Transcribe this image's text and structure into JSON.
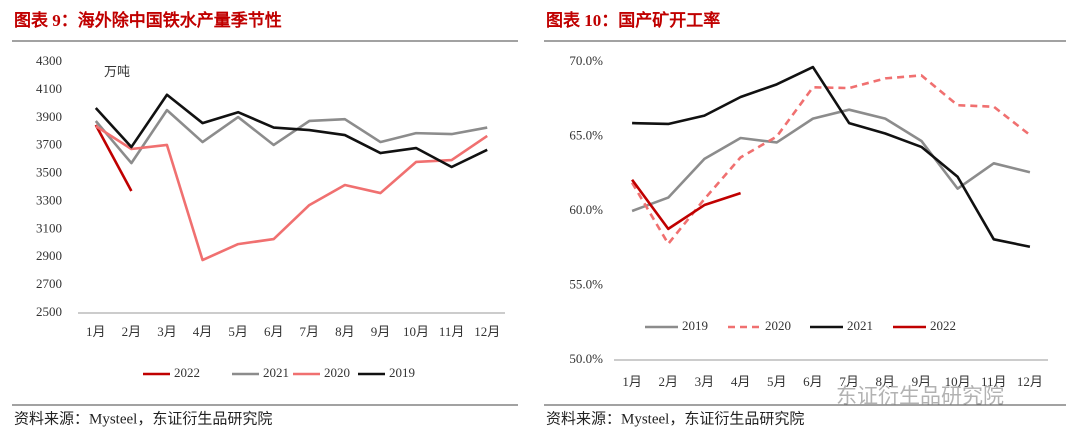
{
  "chart_data": [
    {
      "type": "line",
      "title": "图表 9：海外除中国铁水产量季节性",
      "unit": "万吨",
      "categories": [
        "1月",
        "2月",
        "3月",
        "4月",
        "5月",
        "6月",
        "7月",
        "8月",
        "9月",
        "10月",
        "11月",
        "12月"
      ],
      "ylim": [
        2500,
        4300
      ],
      "yticks": [
        2500,
        2700,
        2900,
        3100,
        3300,
        3500,
        3700,
        3900,
        4100,
        4300
      ],
      "legend": "bottom",
      "series": [
        {
          "name": "2022",
          "color": "#c00000",
          "values": [
            3848,
            3375,
            null,
            null,
            null,
            null,
            null,
            null,
            null,
            null,
            null,
            null
          ]
        },
        {
          "name": "2021",
          "color": "#8c8c8c",
          "values": [
            3877,
            3575,
            3955,
            3726,
            3905,
            3705,
            3877,
            3890,
            3726,
            3790,
            3783,
            3830
          ]
        },
        {
          "name": "2020",
          "color": "#f07070",
          "values": [
            3840,
            3676,
            3705,
            2880,
            2994,
            3030,
            3274,
            3418,
            3360,
            3583,
            3597,
            3770
          ]
        },
        {
          "name": "2019",
          "color": "#111111",
          "values": [
            3970,
            3690,
            4065,
            3862,
            3940,
            3830,
            3812,
            3776,
            3647,
            3683,
            3547,
            3670
          ]
        }
      ],
      "source": "资料来源：Mysteel，东证衍生品研究院"
    },
    {
      "type": "line",
      "title": "图表 10：国产矿开工率",
      "categories": [
        "1月",
        "2月",
        "3月",
        "4月",
        "5月",
        "6月",
        "7月",
        "8月",
        "9月",
        "10月",
        "11月",
        "12月"
      ],
      "ylim": [
        50,
        70
      ],
      "yticks": [
        {
          "value": 50,
          "label": "50.0%"
        },
        {
          "value": 55,
          "label": "55.0%"
        },
        {
          "value": 60,
          "label": "60.0%"
        },
        {
          "value": 65,
          "label": "65.0%"
        },
        {
          "value": 70,
          "label": "70.0%"
        }
      ],
      "legend": "inside-bottom",
      "series": [
        {
          "name": "2019",
          "color": "#8c8c8c",
          "values": [
            60.0,
            60.9,
            63.5,
            64.9,
            64.6,
            66.2,
            66.8,
            66.2,
            64.7,
            61.5,
            63.2,
            62.6
          ]
        },
        {
          "name": "2020",
          "color": "#f07070",
          "line_style": "dashed",
          "values": [
            61.9,
            57.8,
            60.8,
            63.6,
            65.0,
            68.3,
            68.25,
            68.9,
            69.1,
            67.1,
            67.0,
            65.1
          ]
        },
        {
          "name": "2021",
          "color": "#111111",
          "values": [
            65.9,
            65.84,
            66.4,
            67.65,
            68.5,
            69.66,
            65.9,
            65.2,
            64.3,
            62.3,
            58.1,
            57.6
          ]
        },
        {
          "name": "2022",
          "color": "#c00000",
          "values": [
            62.1,
            58.8,
            60.4,
            61.2,
            null,
            null,
            null,
            null,
            null,
            null,
            null,
            null
          ]
        }
      ],
      "source": "资料来源：Mysteel，东证衍生品研究院"
    }
  ],
  "watermark": "东证衍生品研究院"
}
